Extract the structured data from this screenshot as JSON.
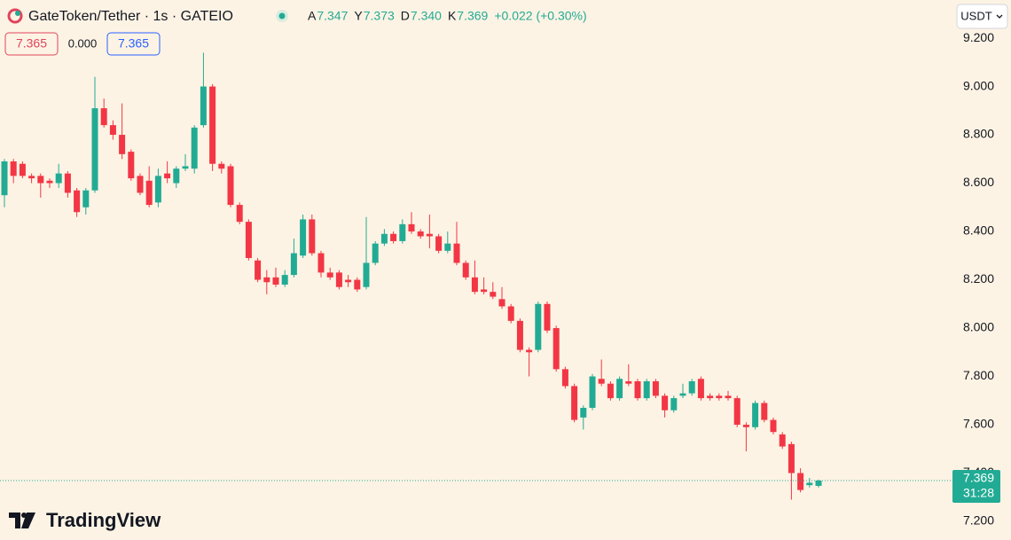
{
  "chart_data": {
    "type": "candlestick",
    "title": "GateToken/Tether · 1s · GATEIO",
    "legend": {
      "ohlc": [
        {
          "label": "A",
          "value": "7.347"
        },
        {
          "label": "Y",
          "value": "7.373"
        },
        {
          "label": "D",
          "value": "7.340"
        },
        {
          "label": "K",
          "value": "7.369"
        }
      ],
      "change": "+0.022 (+0.30%)"
    },
    "inputs": [
      "7.365",
      "0.000",
      "7.365"
    ],
    "currency": "USDT",
    "last_price": {
      "value": 7.369,
      "label": "7.369"
    },
    "countdown": "31:28",
    "brand": "TradingView",
    "up_color": "#22ab94",
    "down_color": "#f23645",
    "ylim": [
      7.123,
      9.358
    ],
    "yticks": [
      {
        "value": 7.2,
        "label": "7.200"
      },
      {
        "value": 7.4,
        "label": "7.400"
      },
      {
        "value": 7.6,
        "label": "7.600"
      },
      {
        "value": 7.8,
        "label": "7.800"
      },
      {
        "value": 8.0,
        "label": "8.000"
      },
      {
        "value": 8.2,
        "label": "8.200"
      },
      {
        "value": 8.4,
        "label": "8.400"
      },
      {
        "value": 8.6,
        "label": "8.600"
      },
      {
        "value": 8.8,
        "label": "8.800"
      },
      {
        "value": 9.0,
        "label": "9.000"
      },
      {
        "value": 9.2,
        "label": "9.200"
      }
    ],
    "open": [
      8.55,
      8.69,
      8.68,
      8.63,
      8.63,
      8.61,
      8.6,
      8.64,
      8.57,
      8.5,
      8.57,
      8.91,
      8.84,
      8.8,
      8.73,
      8.63,
      8.61,
      8.52,
      8.64,
      8.6,
      8.66,
      8.66,
      8.84,
      9.0,
      8.68,
      8.67,
      8.51,
      8.44,
      8.28,
      8.21,
      8.21,
      8.18,
      8.22,
      8.3,
      8.45,
      8.31,
      8.23,
      8.23,
      8.2,
      8.2,
      8.17,
      8.27,
      8.35,
      8.39,
      8.36,
      8.43,
      8.4,
      8.39,
      8.38,
      8.32,
      8.35,
      8.27,
      8.21,
      8.16,
      8.15,
      8.12,
      8.09,
      8.03,
      7.91,
      7.91,
      8.1,
      8.0,
      7.83,
      7.76,
      7.63,
      7.67,
      7.79,
      7.77,
      7.71,
      7.78,
      7.78,
      7.71,
      7.78,
      7.72,
      7.66,
      7.72,
      7.73,
      7.79,
      7.72,
      7.72,
      7.72,
      7.71,
      7.6,
      7.59,
      7.69,
      7.62,
      7.56,
      7.52,
      7.4,
      7.35,
      7.347
    ],
    "high": [
      8.7,
      8.7,
      8.69,
      8.64,
      8.64,
      8.62,
      8.68,
      8.65,
      8.58,
      8.58,
      9.04,
      8.95,
      8.86,
      8.93,
      8.74,
      8.64,
      8.67,
      8.66,
      8.69,
      8.67,
      8.72,
      8.84,
      9.14,
      9.01,
      8.69,
      8.68,
      8.52,
      8.45,
      8.29,
      8.24,
      8.25,
      8.24,
      8.37,
      8.47,
      8.47,
      8.32,
      8.25,
      8.24,
      8.22,
      8.21,
      8.46,
      8.36,
      8.41,
      8.4,
      8.45,
      8.48,
      8.41,
      8.47,
      8.39,
      8.4,
      8.44,
      8.28,
      8.28,
      8.21,
      8.19,
      8.17,
      8.1,
      8.04,
      7.92,
      8.11,
      8.11,
      8.01,
      7.84,
      7.77,
      7.68,
      7.81,
      7.87,
      7.78,
      7.8,
      7.85,
      7.79,
      7.79,
      7.79,
      7.73,
      7.72,
      7.77,
      7.79,
      7.8,
      7.73,
      7.73,
      7.74,
      7.72,
      7.61,
      7.7,
      7.7,
      7.63,
      7.57,
      7.53,
      7.42,
      7.38,
      7.373
    ],
    "low": [
      8.5,
      8.6,
      8.62,
      8.6,
      8.54,
      8.58,
      8.58,
      8.54,
      8.46,
      8.47,
      8.56,
      8.83,
      8.78,
      8.7,
      8.61,
      8.55,
      8.5,
      8.5,
      8.6,
      8.58,
      8.65,
      8.64,
      8.83,
      8.65,
      8.64,
      8.5,
      8.43,
      8.28,
      8.19,
      8.14,
      8.17,
      8.17,
      8.21,
      8.29,
      8.3,
      8.21,
      8.2,
      8.16,
      8.17,
      8.15,
      8.16,
      8.26,
      8.34,
      8.35,
      8.35,
      8.39,
      8.37,
      8.33,
      8.31,
      8.31,
      8.26,
      8.2,
      8.14,
      8.14,
      8.12,
      8.08,
      8.02,
      7.9,
      7.8,
      7.9,
      7.98,
      7.82,
      7.75,
      7.61,
      7.58,
      7.66,
      7.76,
      7.7,
      7.7,
      7.76,
      7.7,
      7.7,
      7.71,
      7.63,
      7.65,
      7.71,
      7.72,
      7.7,
      7.7,
      7.7,
      7.7,
      7.59,
      7.49,
      7.58,
      7.61,
      7.56,
      7.5,
      7.29,
      7.32,
      7.34,
      7.34
    ],
    "close": [
      8.69,
      8.63,
      8.63,
      8.62,
      8.6,
      8.6,
      8.64,
      8.56,
      8.48,
      8.57,
      8.91,
      8.84,
      8.8,
      8.72,
      8.62,
      8.56,
      8.51,
      8.63,
      8.62,
      8.66,
      8.67,
      8.83,
      9.0,
      8.68,
      8.66,
      8.51,
      8.44,
      8.29,
      8.2,
      8.19,
      8.18,
      8.22,
      8.31,
      8.45,
      8.31,
      8.23,
      8.21,
      8.17,
      8.19,
      8.16,
      8.27,
      8.35,
      8.39,
      8.36,
      8.43,
      8.4,
      8.38,
      8.38,
      8.32,
      8.35,
      8.27,
      8.21,
      8.15,
      8.15,
      8.13,
      8.09,
      8.03,
      7.91,
      7.9,
      8.1,
      7.99,
      7.83,
      7.76,
      7.62,
      7.67,
      7.8,
      7.77,
      7.71,
      7.79,
      7.77,
      7.71,
      7.78,
      7.72,
      7.66,
      7.71,
      7.73,
      7.78,
      7.71,
      7.71,
      7.71,
      7.71,
      7.6,
      7.59,
      7.69,
      7.62,
      7.57,
      7.51,
      7.4,
      7.33,
      7.36,
      7.369
    ]
  }
}
